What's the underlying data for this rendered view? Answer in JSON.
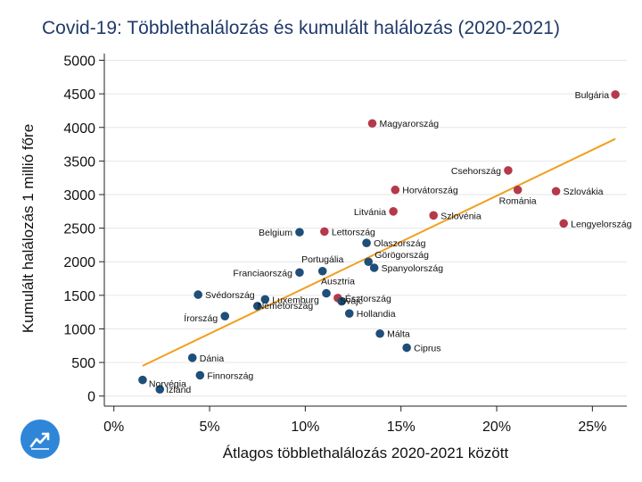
{
  "chart_data": {
    "type": "scatter",
    "title": "Covid-19: Többlethalálozás és kumulált halálozás (2020-2021)",
    "xlabel": "Átlagos többlethalálozás 2020-2021 között",
    "ylabel": "Kumulált halálozás 1 millió főre",
    "xlim": [
      -0.5,
      26.8
    ],
    "ylim": [
      -150,
      5100
    ],
    "xticks": [
      0,
      5,
      10,
      15,
      20,
      25
    ],
    "xtick_labels": [
      "0%",
      "5%",
      "10%",
      "15%",
      "20%",
      "25%"
    ],
    "yticks": [
      0,
      500,
      1000,
      1500,
      2000,
      2500,
      3000,
      3500,
      4000,
      4500,
      5000
    ],
    "grid": "horizontal",
    "colors": {
      "high": "#b5394a",
      "low": "#1f4e79",
      "trend": "#f0a020"
    },
    "trendline": {
      "x": [
        1.5,
        26.2
      ],
      "y": [
        450,
        3830
      ]
    },
    "points": [
      {
        "label": "Bulgária",
        "x": 26.2,
        "y": 4490,
        "group": "high"
      },
      {
        "label": "Magyarország",
        "x": 13.5,
        "y": 4060,
        "group": "high"
      },
      {
        "label": "Csehország",
        "x": 20.6,
        "y": 3360,
        "group": "high"
      },
      {
        "label": "Horvátország",
        "x": 14.7,
        "y": 3070,
        "group": "high"
      },
      {
        "label": "Románia",
        "x": 21.1,
        "y": 3070,
        "group": "high"
      },
      {
        "label": "Szlovákia",
        "x": 23.1,
        "y": 3050,
        "group": "high"
      },
      {
        "label": "Litvánia",
        "x": 14.6,
        "y": 2750,
        "group": "high"
      },
      {
        "label": "Szlovénia",
        "x": 16.7,
        "y": 2690,
        "group": "high"
      },
      {
        "label": "Lengyelország",
        "x": 23.5,
        "y": 2570,
        "group": "high"
      },
      {
        "label": "Lettország",
        "x": 11.0,
        "y": 2450,
        "group": "high"
      },
      {
        "label": "Észtország",
        "x": 11.7,
        "y": 1460,
        "group": "high"
      },
      {
        "label": "Belgium",
        "x": 9.7,
        "y": 2440,
        "group": "low"
      },
      {
        "label": "Olaszország",
        "x": 13.2,
        "y": 2280,
        "group": "low"
      },
      {
        "label": "Görögország",
        "x": 13.3,
        "y": 2000,
        "group": "low"
      },
      {
        "label": "Spanyolország",
        "x": 13.6,
        "y": 1910,
        "group": "low"
      },
      {
        "label": "Portugália",
        "x": 10.9,
        "y": 1860,
        "group": "low"
      },
      {
        "label": "Franciaország",
        "x": 9.7,
        "y": 1840,
        "group": "low"
      },
      {
        "label": "Ausztria",
        "x": 11.1,
        "y": 1530,
        "group": "low"
      },
      {
        "label": "Svédország",
        "x": 4.4,
        "y": 1510,
        "group": "low"
      },
      {
        "label": "Luxemburg",
        "x": 7.9,
        "y": 1440,
        "group": "low"
      },
      {
        "label": "Svájc",
        "x": 11.9,
        "y": 1410,
        "group": "low"
      },
      {
        "label": "Németország",
        "x": 7.5,
        "y": 1340,
        "group": "low"
      },
      {
        "label": "Hollandia",
        "x": 12.3,
        "y": 1230,
        "group": "low"
      },
      {
        "label": "Írország",
        "x": 5.8,
        "y": 1190,
        "group": "low"
      },
      {
        "label": "Málta",
        "x": 13.9,
        "y": 930,
        "group": "low"
      },
      {
        "label": "Ciprus",
        "x": 15.3,
        "y": 720,
        "group": "low"
      },
      {
        "label": "Dánia",
        "x": 4.1,
        "y": 570,
        "group": "low"
      },
      {
        "label": "Finnország",
        "x": 4.5,
        "y": 310,
        "group": "low"
      },
      {
        "label": "Norvégia",
        "x": 1.5,
        "y": 240,
        "group": "low"
      },
      {
        "label": "Izland",
        "x": 2.4,
        "y": 100,
        "group": "low"
      }
    ]
  },
  "logo": {
    "icon": "trend-chart-icon",
    "color": "#2f86d8"
  }
}
